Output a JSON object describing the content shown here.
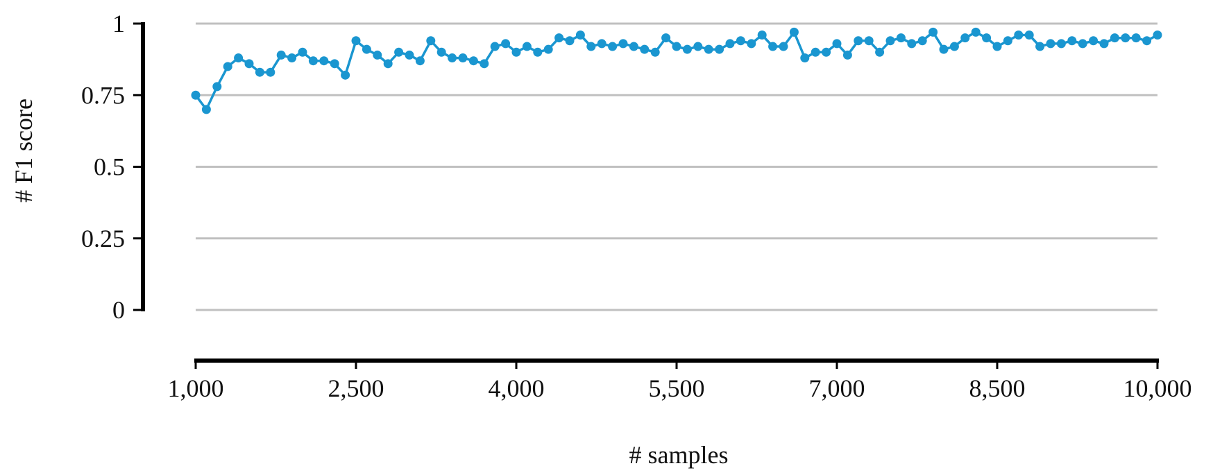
{
  "chart_data": {
    "type": "line",
    "title": "",
    "xlabel": "# samples",
    "ylabel": "# F1 score",
    "xlim": [
      1000,
      10000
    ],
    "ylim": [
      0,
      1
    ],
    "x_ticks": [
      {
        "value": 1000,
        "label": "1,000"
      },
      {
        "value": 2500,
        "label": "2,500"
      },
      {
        "value": 4000,
        "label": "4,000"
      },
      {
        "value": 5500,
        "label": "5,500"
      },
      {
        "value": 7000,
        "label": "7,000"
      },
      {
        "value": 8500,
        "label": "8,500"
      },
      {
        "value": 10000,
        "label": "10,000"
      }
    ],
    "y_ticks": [
      {
        "value": 0,
        "label": "0"
      },
      {
        "value": 0.25,
        "label": "0.25"
      },
      {
        "value": 0.5,
        "label": "0.5"
      },
      {
        "value": 0.75,
        "label": "0.75"
      },
      {
        "value": 1,
        "label": "1"
      }
    ],
    "grid": "horizontal",
    "legend": "none",
    "colors": {
      "series": "#1a96d0",
      "grid": "#c0c0c0",
      "axis": "#000000",
      "text": "#111111"
    },
    "series": [
      {
        "x": [
          1000,
          1100,
          1200,
          1300,
          1400,
          1500,
          1600,
          1700,
          1800,
          1900,
          2000,
          2100,
          2200,
          2300,
          2400,
          2500,
          2600,
          2700,
          2800,
          2900,
          3000,
          3100,
          3200,
          3300,
          3400,
          3500,
          3600,
          3700,
          3800,
          3900,
          4000,
          4100,
          4200,
          4300,
          4400,
          4500,
          4600,
          4700,
          4800,
          4900,
          5000,
          5100,
          5200,
          5300,
          5400,
          5500,
          5600,
          5700,
          5800,
          5900,
          6000,
          6100,
          6200,
          6300,
          6400,
          6500,
          6600,
          6700,
          6800,
          6900,
          7000,
          7100,
          7200,
          7300,
          7400,
          7500,
          7600,
          7700,
          7800,
          7900,
          8000,
          8100,
          8200,
          8300,
          8400,
          8500,
          8600,
          8700,
          8800,
          8900,
          9000,
          9100,
          9200,
          9300,
          9400,
          9500,
          9600,
          9700,
          9800,
          9900,
          10000
        ],
        "values": [
          0.75,
          0.7,
          0.78,
          0.85,
          0.88,
          0.86,
          0.83,
          0.83,
          0.89,
          0.88,
          0.9,
          0.87,
          0.87,
          0.86,
          0.82,
          0.94,
          0.91,
          0.89,
          0.86,
          0.9,
          0.89,
          0.87,
          0.94,
          0.9,
          0.88,
          0.88,
          0.87,
          0.86,
          0.92,
          0.93,
          0.9,
          0.92,
          0.9,
          0.91,
          0.95,
          0.94,
          0.96,
          0.92,
          0.93,
          0.92,
          0.93,
          0.92,
          0.91,
          0.9,
          0.95,
          0.92,
          0.91,
          0.92,
          0.91,
          0.91,
          0.93,
          0.94,
          0.93,
          0.96,
          0.92,
          0.92,
          0.97,
          0.88,
          0.9,
          0.9,
          0.93,
          0.89,
          0.94,
          0.94,
          0.9,
          0.94,
          0.95,
          0.93,
          0.94,
          0.97,
          0.91,
          0.92,
          0.95,
          0.97,
          0.95,
          0.92,
          0.94,
          0.96,
          0.96,
          0.92,
          0.93,
          0.93,
          0.94,
          0.93,
          0.94,
          0.93,
          0.95,
          0.95,
          0.95,
          0.94,
          0.96
        ]
      }
    ]
  }
}
